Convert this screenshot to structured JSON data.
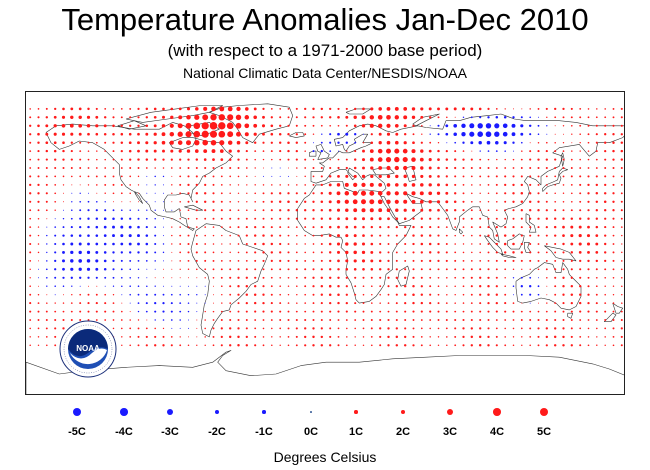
{
  "header": {
    "title": "Temperature Anomalies Jan-Dec 2010",
    "subtitle": "(with respect to a 1971-2000 base period)",
    "credit": "National Climatic Data Center/NESDIS/NOAA"
  },
  "logo": {
    "name": "NOAA",
    "ring_text": "NATIONAL OCEANIC AND ATMOSPHERIC ADMINISTRATION · U.S. DEPARTMENT OF COMMERCE"
  },
  "colors": {
    "warm": "#ff1a1a",
    "cold": "#1a1aff",
    "coast": "#333333"
  },
  "legend": {
    "items": [
      {
        "label": "-5C",
        "value": -5
      },
      {
        "label": "-4C",
        "value": -4
      },
      {
        "label": "-3C",
        "value": -3
      },
      {
        "label": "-2C",
        "value": -2
      },
      {
        "label": "-1C",
        "value": -1
      },
      {
        "label": "0C",
        "value": 0
      },
      {
        "label": "1C",
        "value": 1
      },
      {
        "label": "2C",
        "value": 2
      },
      {
        "label": "3C",
        "value": 3
      },
      {
        "label": "4C",
        "value": 4
      },
      {
        "label": "5C",
        "value": 5
      }
    ],
    "units": "Degrees Celsius"
  },
  "map": {
    "projection": "equirectangular",
    "lon_range": [
      -180,
      180
    ],
    "lat_range": [
      -90,
      90
    ],
    "grid_spacing_deg": 5,
    "data_lat_range": [
      -60,
      80
    ]
  }
}
